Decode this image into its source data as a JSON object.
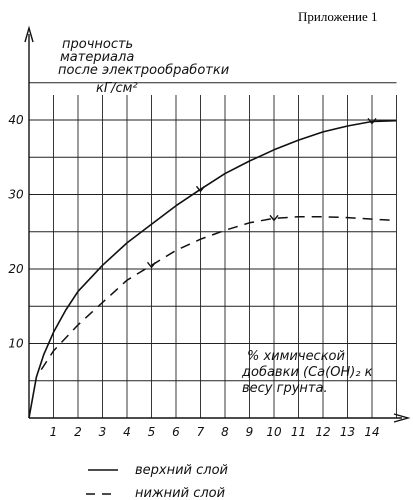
{
  "header": {
    "appendix": "Приложение 1"
  },
  "chart_data": {
    "type": "line",
    "ylabel_lines": [
      "прочность",
      "материала",
      "после электрообработки",
      "кГ/см²"
    ],
    "xlabel_lines": [
      "% химической",
      "добавки (Ca(OH)₂ к",
      "весу грунта."
    ],
    "xlim": [
      0,
      15
    ],
    "ylim": [
      0,
      45
    ],
    "xticks": [
      "1",
      "2",
      "3",
      "4",
      "5",
      "6",
      "7",
      "8",
      "9",
      "10",
      "11",
      "12",
      "13",
      "14"
    ],
    "yticks": [
      "10",
      "20",
      "30",
      "40"
    ],
    "grid": true,
    "legend_placement": "bottom",
    "series": [
      {
        "name": "верхний слой",
        "style": "solid",
        "color": "#111111",
        "x": [
          0,
          0.3,
          0.6,
          1,
          1.5,
          2,
          3,
          4,
          5,
          6,
          7,
          8,
          9,
          10,
          11,
          12,
          13,
          14,
          15
        ],
        "y": [
          0,
          5.5,
          8.5,
          11.5,
          14.5,
          17,
          20.5,
          23.5,
          26,
          28.5,
          30.7,
          32.8,
          34.5,
          36,
          37.3,
          38.4,
          39.2,
          39.8,
          39.9
        ],
        "markers_x": [
          7,
          14
        ]
      },
      {
        "name": "нижний слой",
        "style": "dashed",
        "color": "#111111",
        "x": [
          0.5,
          1,
          2,
          3,
          4,
          5,
          6,
          7,
          8,
          9,
          10,
          11,
          12,
          13,
          14,
          15
        ],
        "y": [
          6.5,
          9,
          12.5,
          15.5,
          18.5,
          20.5,
          22.5,
          24,
          25.2,
          26.2,
          26.8,
          27,
          27,
          26.9,
          26.7,
          26.5
        ],
        "markers_x": [
          5,
          10
        ]
      }
    ]
  }
}
